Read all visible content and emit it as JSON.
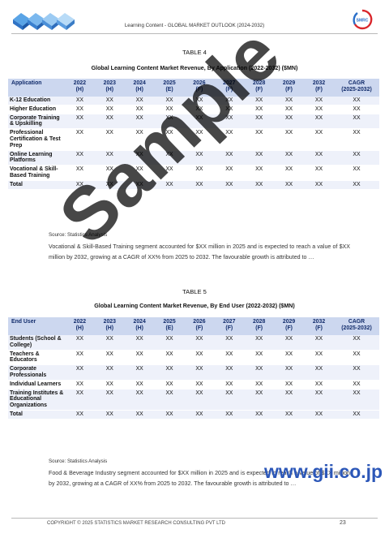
{
  "header": {
    "title": "Learning Content - GLOBAL MARKET OUTLOOK (2024-2032)",
    "badge_text": "SMRC",
    "colors": {
      "accent": "#1f4fa8",
      "badge_red": "#d9262b",
      "badge_blue": "#2a6fc9"
    }
  },
  "table1": {
    "caption": "TABLE 4",
    "heading": "Global Learning Content Market Revenue, By Application (2022-2032) ($MN)",
    "columns": [
      {
        "label": "Application",
        "sub": ""
      },
      {
        "label": "2022",
        "sub": "(H)"
      },
      {
        "label": "2023",
        "sub": "(H)"
      },
      {
        "label": "2024",
        "sub": "(H)"
      },
      {
        "label": "2025",
        "sub": "(E)"
      },
      {
        "label": "2026",
        "sub": "(F)"
      },
      {
        "label": "2027",
        "sub": "(F)"
      },
      {
        "label": "2028",
        "sub": "(F)"
      },
      {
        "label": "2029",
        "sub": "(F)"
      },
      {
        "label": "2032",
        "sub": "(F)"
      },
      {
        "label": "CAGR",
        "sub": "(2025-2032)"
      }
    ],
    "rows": [
      {
        "label": "K-12 Education",
        "values": [
          "XX",
          "XX",
          "XX",
          "XX",
          "XX",
          "XX",
          "XX",
          "XX",
          "XX",
          "XX"
        ]
      },
      {
        "label": "Higher Education",
        "values": [
          "XX",
          "XX",
          "XX",
          "XX",
          "XX",
          "XX",
          "XX",
          "XX",
          "XX",
          "XX"
        ]
      },
      {
        "label": "Corporate Training & Upskilling",
        "values": [
          "XX",
          "XX",
          "XX",
          "XX",
          "XX",
          "XX",
          "XX",
          "XX",
          "XX",
          "XX"
        ]
      },
      {
        "label": "Professional Certification & Test Prep",
        "values": [
          "XX",
          "XX",
          "XX",
          "XX",
          "XX",
          "XX",
          "XX",
          "XX",
          "XX",
          "XX"
        ]
      },
      {
        "label": "Online Learning Platforms",
        "values": [
          "XX",
          "XX",
          "XX",
          "XX",
          "XX",
          "XX",
          "XX",
          "XX",
          "XX",
          "XX"
        ]
      },
      {
        "label": "Vocational & Skill-Based Training",
        "values": [
          "XX",
          "XX",
          "XX",
          "XX",
          "XX",
          "XX",
          "XX",
          "XX",
          "XX",
          "XX"
        ]
      },
      {
        "label": "Total",
        "values": [
          "XX",
          "XX",
          "XX",
          "XX",
          "XX",
          "XX",
          "XX",
          "XX",
          "XX",
          "XX"
        ]
      }
    ],
    "source": "Source: Statistics Analysis",
    "paragraph": "Vocational & Skill-Based Training segment accounted for $XX million in 2025 and is expected to reach a value of $XX million by 2032, growing at a CAGR of XX% from 2025 to 2032. The favourable growth is attributed to …"
  },
  "table2": {
    "caption": "TABLE 5",
    "heading": "Global Learning Content Market Revenue, By End User (2022-2032) ($MN)",
    "columns": [
      {
        "label": "End User",
        "sub": ""
      },
      {
        "label": "2022",
        "sub": "(H)"
      },
      {
        "label": "2023",
        "sub": "(H)"
      },
      {
        "label": "2024",
        "sub": "(H)"
      },
      {
        "label": "2025",
        "sub": "(E)"
      },
      {
        "label": "2026",
        "sub": "(F)"
      },
      {
        "label": "2027",
        "sub": "(F)"
      },
      {
        "label": "2028",
        "sub": "(F)"
      },
      {
        "label": "2029",
        "sub": "(F)"
      },
      {
        "label": "2032",
        "sub": "(F)"
      },
      {
        "label": "CAGR",
        "sub": "(2025-2032)"
      }
    ],
    "rows": [
      {
        "label": "Students (School & College)",
        "values": [
          "XX",
          "XX",
          "XX",
          "XX",
          "XX",
          "XX",
          "XX",
          "XX",
          "XX",
          "XX"
        ]
      },
      {
        "label": "Teachers & Educators",
        "values": [
          "XX",
          "XX",
          "XX",
          "XX",
          "XX",
          "XX",
          "XX",
          "XX",
          "XX",
          "XX"
        ]
      },
      {
        "label": "Corporate Professionals",
        "values": [
          "XX",
          "XX",
          "XX",
          "XX",
          "XX",
          "XX",
          "XX",
          "XX",
          "XX",
          "XX"
        ]
      },
      {
        "label": "Individual Learners",
        "values": [
          "XX",
          "XX",
          "XX",
          "XX",
          "XX",
          "XX",
          "XX",
          "XX",
          "XX",
          "XX"
        ]
      },
      {
        "label": "Training Institutes & Educational Organizations",
        "values": [
          "XX",
          "XX",
          "XX",
          "XX",
          "XX",
          "XX",
          "XX",
          "XX",
          "XX",
          "XX"
        ]
      },
      {
        "label": "Total",
        "values": [
          "XX",
          "XX",
          "XX",
          "XX",
          "XX",
          "XX",
          "XX",
          "XX",
          "XX",
          "XX"
        ]
      }
    ],
    "source": "Source: Statistics Analysis",
    "paragraph": "Food & Beverage Industry segment accounted for $XX million in 2025 and is expected to reach a value of $XX million by 2032, growing at a CAGR of XX% from 2025 to 2032. The favourable growth is attributed to …"
  },
  "watermark": {
    "text": "Sample",
    "site": "www.gii.co.jp"
  },
  "footer": {
    "copyright": "COPYRIGHT © 2025 STATISTICS MARKET RESEARCH CONSULTING PVT LTD",
    "page_number": "23"
  }
}
